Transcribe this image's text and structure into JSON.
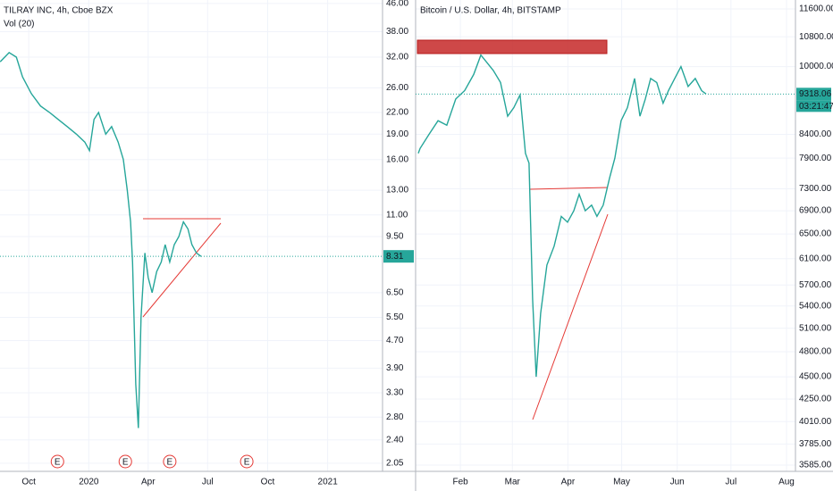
{
  "chart_data": [
    {
      "type": "line",
      "title": "TILRAY INC, 4h, Cboe BZX",
      "subtitle": "Vol (20)",
      "log_scale": true,
      "grid": true,
      "color": "#26a69a",
      "x": [
        -13.7,
        0,
        11,
        20.5,
        34,
        48,
        62,
        75,
        89,
        103,
        116,
        123,
        130,
        137,
        148,
        157,
        167,
        175,
        181,
        186,
        189,
        194,
        198,
        202,
        208,
        213,
        219,
        226,
        233,
        239,
        246,
        253,
        260,
        267,
        274,
        280,
        287,
        294
      ],
      "values": [
        31,
        33,
        32,
        28,
        25,
        23,
        22,
        21,
        20,
        19,
        18,
        17,
        21,
        22,
        19,
        20,
        18,
        16,
        13,
        10.5,
        8,
        3.5,
        2.6,
        5.5,
        8.5,
        7.2,
        6.5,
        7.5,
        8,
        9,
        8,
        9,
        9.5,
        10.5,
        10,
        9,
        8.5,
        8.31
      ],
      "xlim": [
        -14,
        572
      ],
      "xticks": [
        {
          "value": 30,
          "label": "Oct"
        },
        {
          "value": 122,
          "label": "2020"
        },
        {
          "value": 213,
          "label": "Apr"
        },
        {
          "value": 304,
          "label": "Jul"
        },
        {
          "value": 396,
          "label": "Oct"
        },
        {
          "value": 488,
          "label": "2021"
        }
      ],
      "ylim": [
        1.94,
        47.1
      ],
      "yticks": [
        {
          "value": 46,
          "label": "46.00"
        },
        {
          "value": 38,
          "label": "38.00"
        },
        {
          "value": 32,
          "label": "32.00"
        },
        {
          "value": 26,
          "label": "26.00"
        },
        {
          "value": 22,
          "label": "22.00"
        },
        {
          "value": 19,
          "label": "19.00"
        },
        {
          "value": 16,
          "label": "16.00"
        },
        {
          "value": 13,
          "label": "13.00"
        },
        {
          "value": 11,
          "label": "11.00"
        },
        {
          "value": 9.5,
          "label": "9.50"
        },
        {
          "value": 6.5,
          "label": "6.50"
        },
        {
          "value": 5.5,
          "label": "5.50"
        },
        {
          "value": 4.7,
          "label": "4.70"
        },
        {
          "value": 3.9,
          "label": "3.90"
        },
        {
          "value": 3.3,
          "label": "3.30"
        },
        {
          "value": 2.8,
          "label": "2.80"
        },
        {
          "value": 2.4,
          "label": "2.40"
        },
        2.05
      ],
      "last_price": 8.31,
      "events": {
        "x": [
          74,
          178,
          246,
          364
        ],
        "label": "E"
      }
    },
    {
      "type": "line",
      "title": "Bitcoin / U.S. Dollar, 4h, BITSTAMP",
      "log_scale": true,
      "grid": true,
      "color": "#26a69a",
      "x": [
        7.5,
        8.5,
        13.5,
        18.5,
        23.4,
        28.4,
        33.4,
        38.4,
        42.4,
        45.9,
        49.4,
        53.4,
        57.4,
        60.8,
        64.3,
        67.3,
        69.3,
        71.3,
        73.3,
        75.8,
        79.3,
        83.3,
        87.3,
        90.8,
        94.3,
        97.3,
        100.7,
        104.2,
        107.2,
        110.7,
        114.2,
        117.2,
        120.7,
        124.2,
        128.2,
        131.2,
        134.2,
        137.2,
        140.6,
        144.1,
        147.1,
        150.6,
        154.1,
        158.1,
        162.1,
        165.6,
        168.1
      ],
      "values": [
        8000,
        8100,
        8400,
        8700,
        8600,
        9200,
        9400,
        9800,
        10300,
        10100,
        9900,
        9600,
        8800,
        9000,
        9300,
        8000,
        7800,
        5500,
        4500,
        5300,
        6000,
        6300,
        6800,
        6700,
        6900,
        7200,
        6900,
        7000,
        6800,
        7000,
        7500,
        7900,
        8700,
        9000,
        9700,
        8800,
        9200,
        9700,
        9600,
        9100,
        9400,
        9700,
        10000,
        9500,
        9700,
        9400,
        9318.06
      ],
      "xlim": [
        6,
        218
      ],
      "xticks": [
        {
          "value": 31,
          "label": "Feb"
        },
        {
          "value": 60,
          "label": "Mar"
        },
        {
          "value": 91,
          "label": "Apr"
        },
        {
          "value": 121,
          "label": "May"
        },
        {
          "value": 152,
          "label": "Jun"
        },
        {
          "value": 182,
          "label": "Jul"
        },
        {
          "value": 213,
          "label": "Aug"
        }
      ],
      "ylim": [
        3528,
        11870
      ],
      "yticks": [
        {
          "value": 11600,
          "label": "11600.00"
        },
        {
          "value": 10800,
          "label": "10800.00"
        },
        {
          "value": 10000,
          "label": "10000.00"
        },
        {
          "value": 8400,
          "label": "8400.00"
        },
        {
          "value": 7900,
          "label": "7900.00"
        },
        {
          "value": 7300,
          "label": "7300.00"
        },
        {
          "value": 6900,
          "label": "6900.00"
        },
        {
          "value": 6500,
          "label": "6500.00"
        },
        {
          "value": 6100,
          "label": "6100.00"
        },
        {
          "value": 5700,
          "label": "5700.00"
        },
        {
          "value": 5400,
          "label": "5400.00"
        },
        {
          "value": 5100,
          "label": "5100.00"
        },
        {
          "value": 4800,
          "label": "4800.00"
        },
        {
          "value": 4500,
          "label": "4500.00"
        },
        {
          "value": 4250,
          "label": "4250.00"
        },
        {
          "value": 4010,
          "label": "4010.00"
        },
        {
          "value": 3785,
          "label": "3785.00"
        },
        {
          "value": 3585,
          "label": "3585.00"
        }
      ],
      "last_price": 9318.06,
      "countdown": "03:21:47"
    }
  ]
}
